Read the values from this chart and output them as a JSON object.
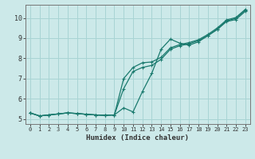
{
  "title": "",
  "xlabel": "Humidex (Indice chaleur)",
  "ylabel": "",
  "bg_color": "#cce9e9",
  "grid_color": "#a8d4d4",
  "line_color": "#1a7a6e",
  "xlim": [
    -0.5,
    23.5
  ],
  "ylim": [
    4.75,
    10.65
  ],
  "xticks": [
    0,
    1,
    2,
    3,
    4,
    5,
    6,
    7,
    8,
    9,
    10,
    11,
    12,
    13,
    14,
    15,
    16,
    17,
    18,
    19,
    20,
    21,
    22,
    23
  ],
  "yticks": [
    5,
    6,
    7,
    8,
    9,
    10
  ],
  "line1_x": [
    0,
    1,
    2,
    3,
    4,
    5,
    6,
    7,
    8,
    9,
    10,
    11,
    12,
    13,
    14,
    15,
    16,
    17,
    18,
    19,
    20,
    21,
    22,
    23
  ],
  "line1_y": [
    5.3,
    5.15,
    5.2,
    5.25,
    5.3,
    5.27,
    5.23,
    5.2,
    5.18,
    5.2,
    5.55,
    5.35,
    6.35,
    7.25,
    8.45,
    8.95,
    8.75,
    8.65,
    8.82,
    9.12,
    9.42,
    9.82,
    9.92,
    10.32
  ],
  "line2_x": [
    0,
    1,
    2,
    3,
    4,
    5,
    6,
    7,
    8,
    9,
    10,
    11,
    12,
    13,
    14,
    15,
    16,
    17,
    18,
    19,
    20,
    21,
    22,
    23
  ],
  "line2_y": [
    5.3,
    5.15,
    5.2,
    5.25,
    5.3,
    5.27,
    5.23,
    5.2,
    5.18,
    5.2,
    6.5,
    7.35,
    7.55,
    7.65,
    7.95,
    8.45,
    8.62,
    8.72,
    8.88,
    9.12,
    9.45,
    9.85,
    9.98,
    10.38
  ],
  "line3_x": [
    0,
    1,
    2,
    3,
    4,
    5,
    6,
    7,
    8,
    9,
    10,
    11,
    12,
    13,
    14,
    15,
    16,
    17,
    18,
    19,
    20,
    21,
    22,
    23
  ],
  "line3_y": [
    5.3,
    5.15,
    5.2,
    5.25,
    5.3,
    5.27,
    5.23,
    5.2,
    5.18,
    5.2,
    7.0,
    7.55,
    7.78,
    7.82,
    8.05,
    8.52,
    8.68,
    8.78,
    8.92,
    9.18,
    9.5,
    9.9,
    10.02,
    10.42
  ]
}
